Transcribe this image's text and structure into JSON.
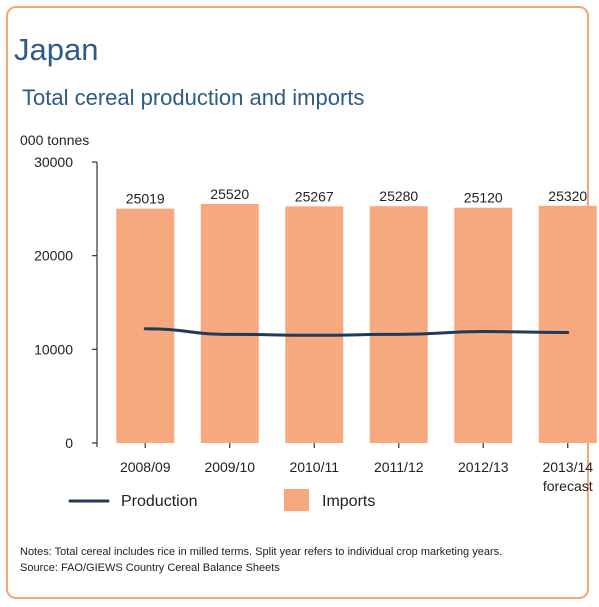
{
  "chart_data": {
    "type": "bar",
    "title": "Japan",
    "subtitle": "Total cereal production and imports",
    "ylabel": "000 tonnes",
    "ylim": [
      0,
      30000
    ],
    "yticks": [
      0,
      10000,
      20000,
      30000
    ],
    "categories": [
      "2008/09",
      "2009/10",
      "2010/11",
      "2011/12",
      "2012/13",
      "2013/14"
    ],
    "category_sublabels": [
      "",
      "",
      "",
      "",
      "",
      "forecast"
    ],
    "series": [
      {
        "name": "Imports",
        "type": "bar",
        "color": "#f6a97e",
        "values": [
          25019,
          25520,
          25267,
          25280,
          25120,
          25320
        ]
      },
      {
        "name": "Production",
        "type": "line",
        "color": "#1f3b5a",
        "values": [
          12200,
          11600,
          11500,
          11600,
          11900,
          11800
        ]
      }
    ],
    "data_labels": [
      "25019",
      "25520",
      "25267",
      "25280",
      "25120",
      "25320"
    ],
    "legend_position": "bottom-left",
    "grid": false
  },
  "notes": [
    "Notes: Total cereal includes rice in milled terms. Split year refers to individual crop marketing years.",
    "Source: FAO/GIEWS Country Cereal Balance Sheets"
  ]
}
